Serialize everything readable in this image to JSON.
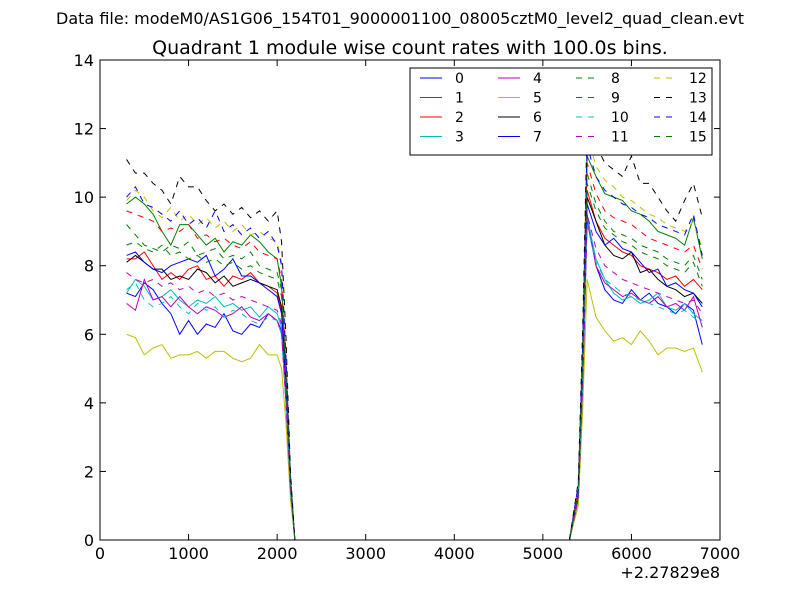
{
  "figure": {
    "suptitle": "Data file: modeM0/AS1G06_154T01_9000001100_08005cztM0_level2_quad_clean.evt"
  },
  "chart_data": {
    "type": "line",
    "title": "Quadrant 1 module wise count rates with 100.0s bins.",
    "xlabel": "",
    "ylabel": "",
    "x_offset_label": "+2.27829e8",
    "xlim": [
      0,
      7000
    ],
    "ylim": [
      0,
      14
    ],
    "xticks": [
      0,
      1000,
      2000,
      3000,
      4000,
      5000,
      6000,
      7000
    ],
    "yticks": [
      0,
      2,
      4,
      6,
      8,
      10,
      12,
      14
    ],
    "grid": false,
    "legend_position": "top-right",
    "legend_columns": 4,
    "gap_start": 2200,
    "gap_end": 5300,
    "seg1": [
      300,
      400,
      500,
      600,
      700,
      800,
      900,
      1000,
      1100,
      1200,
      1300,
      1400,
      1500,
      1600,
      1700,
      1800,
      1900,
      2000,
      2050,
      2100,
      2150,
      2200
    ],
    "seg2": [
      5300,
      5400,
      5450,
      5500,
      5600,
      5700,
      5800,
      5900,
      6000,
      6100,
      6200,
      6300,
      6400,
      6500,
      6600,
      6700,
      6800
    ],
    "series": [
      {
        "name": "0",
        "color": "#0000ff",
        "dash": "solid",
        "seg1": [
          7.2,
          7.1,
          7.5,
          7.3,
          6.9,
          6.6,
          6.0,
          6.4,
          6.0,
          6.3,
          6.2,
          6.6,
          6.1,
          6.0,
          6.3,
          6.2,
          6.6,
          6.4,
          6.1,
          4.0,
          1.5,
          0.0
        ],
        "seg2": [
          0.0,
          1.2,
          4.5,
          9.5,
          8.0,
          7.3,
          7.0,
          6.9,
          7.3,
          7.0,
          7.2,
          6.9,
          6.8,
          6.6,
          6.9,
          6.7,
          5.7
        ]
      },
      {
        "name": "1",
        "color": "#008000",
        "dash": "solid",
        "seg1": [
          9.8,
          10.0,
          9.8,
          9.5,
          9.0,
          8.6,
          9.2,
          9.2,
          8.9,
          8.6,
          8.8,
          8.4,
          8.7,
          8.6,
          8.9,
          8.7,
          8.4,
          8.2,
          7.4,
          5.0,
          1.8,
          0.0
        ],
        "seg2": [
          0.0,
          1.4,
          5.2,
          11.2,
          10.6,
          10.1,
          10.0,
          9.9,
          9.6,
          9.5,
          9.3,
          9.0,
          8.9,
          8.8,
          8.6,
          9.4,
          8.2
        ]
      },
      {
        "name": "2",
        "color": "#ff0000",
        "dash": "solid",
        "seg1": [
          8.2,
          8.2,
          8.4,
          8.0,
          7.6,
          7.8,
          7.6,
          7.9,
          8.0,
          7.6,
          7.7,
          7.4,
          7.7,
          7.6,
          7.8,
          7.5,
          7.4,
          7.2,
          6.7,
          4.5,
          1.6,
          0.0
        ],
        "seg2": [
          0.0,
          1.3,
          4.9,
          10.2,
          9.3,
          8.8,
          8.6,
          8.4,
          8.3,
          8.0,
          7.9,
          7.8,
          7.6,
          7.7,
          7.4,
          7.6,
          7.3
        ]
      },
      {
        "name": "3",
        "color": "#00bfbf",
        "dash": "solid",
        "seg1": [
          7.2,
          7.6,
          7.4,
          7.0,
          7.1,
          7.3,
          7.0,
          6.8,
          7.0,
          6.9,
          7.1,
          6.8,
          6.9,
          6.7,
          6.8,
          6.5,
          6.8,
          6.6,
          6.2,
          4.2,
          1.5,
          0.0
        ],
        "seg2": [
          0.0,
          1.2,
          4.6,
          9.4,
          8.2,
          7.6,
          7.2,
          7.0,
          7.1,
          6.9,
          7.0,
          7.2,
          6.8,
          6.7,
          6.9,
          6.6,
          6.4
        ]
      },
      {
        "name": "4",
        "color": "#bf00bf",
        "dash": "solid",
        "seg1": [
          6.9,
          6.7,
          7.6,
          7.0,
          7.1,
          6.8,
          7.1,
          6.8,
          6.6,
          6.8,
          6.7,
          6.5,
          6.6,
          6.8,
          6.5,
          6.4,
          6.6,
          6.4,
          6.0,
          4.0,
          1.4,
          0.0
        ],
        "seg2": [
          0.0,
          1.2,
          4.5,
          9.3,
          8.0,
          7.5,
          7.3,
          7.1,
          7.2,
          7.0,
          6.9,
          7.1,
          6.8,
          6.9,
          6.7,
          7.1,
          6.2
        ]
      },
      {
        "name": "5",
        "color": "#bfbf00",
        "dash": "solid",
        "seg1": [
          6.0,
          5.9,
          5.4,
          5.6,
          5.7,
          5.3,
          5.4,
          5.4,
          5.5,
          5.3,
          5.5,
          5.5,
          5.3,
          5.2,
          5.3,
          5.7,
          5.4,
          5.4,
          5.0,
          3.4,
          1.2,
          0.0
        ],
        "seg2": [
          0.0,
          1.0,
          3.8,
          7.6,
          6.5,
          6.1,
          5.8,
          5.9,
          5.7,
          6.1,
          5.8,
          5.4,
          5.6,
          5.6,
          5.5,
          5.6,
          4.9
        ]
      },
      {
        "name": "6",
        "color": "#000000",
        "dash": "solid",
        "seg1": [
          8.1,
          8.3,
          8.1,
          7.9,
          7.9,
          7.6,
          7.7,
          7.6,
          7.9,
          7.8,
          7.5,
          7.7,
          7.4,
          7.5,
          7.6,
          7.5,
          7.4,
          7.3,
          6.8,
          4.6,
          1.6,
          0.0
        ],
        "seg2": [
          0.0,
          1.3,
          5.0,
          10.0,
          9.3,
          8.6,
          8.3,
          8.2,
          8.4,
          7.8,
          7.9,
          7.6,
          7.4,
          7.3,
          7.1,
          7.2,
          6.9
        ]
      },
      {
        "name": "7",
        "color": "#0000ff",
        "dash": "solid",
        "seg1": [
          8.3,
          8.4,
          8.1,
          7.9,
          7.8,
          8.0,
          8.1,
          8.2,
          8.1,
          8.3,
          7.7,
          7.9,
          8.2,
          7.7,
          7.7,
          7.5,
          7.3,
          7.1,
          6.6,
          4.4,
          1.6,
          0.0
        ],
        "seg2": [
          0.0,
          1.3,
          4.9,
          9.8,
          9.0,
          8.6,
          8.8,
          8.5,
          8.4,
          8.1,
          7.8,
          7.9,
          7.4,
          7.5,
          7.3,
          7.2,
          6.8
        ]
      },
      {
        "name": "8",
        "color": "#008000",
        "dash": "dashed",
        "seg1": [
          9.2,
          8.9,
          8.6,
          8.5,
          8.4,
          8.6,
          8.5,
          8.7,
          8.3,
          8.4,
          8.5,
          8.2,
          8.3,
          8.2,
          8.4,
          8.0,
          7.9,
          7.8,
          7.3,
          4.9,
          1.7,
          0.0
        ],
        "seg2": [
          0.0,
          1.4,
          5.2,
          10.7,
          9.8,
          9.3,
          9.0,
          8.9,
          8.8,
          8.6,
          8.5,
          8.4,
          8.2,
          8.1,
          8.0,
          8.3,
          7.6
        ]
      },
      {
        "name": "9",
        "color": "#ff0000",
        "dash": "dashed",
        "seg1": [
          9.6,
          9.5,
          9.4,
          9.3,
          9.0,
          9.1,
          9.0,
          9.2,
          8.8,
          8.9,
          8.7,
          8.8,
          8.6,
          8.5,
          8.7,
          8.4,
          8.3,
          8.2,
          7.6,
          5.1,
          1.8,
          0.0
        ],
        "seg2": [
          0.0,
          1.5,
          5.4,
          11.0,
          10.1,
          9.6,
          9.4,
          9.3,
          9.2,
          9.0,
          8.8,
          8.7,
          8.6,
          8.5,
          8.4,
          8.6,
          7.9
        ]
      },
      {
        "name": "10",
        "color": "#00bfbf",
        "dash": "dashed",
        "seg1": [
          7.3,
          7.5,
          7.0,
          6.8,
          6.9,
          7.1,
          6.8,
          6.6,
          6.9,
          6.7,
          6.8,
          6.5,
          6.7,
          6.6,
          6.4,
          6.3,
          6.5,
          6.4,
          6.0,
          4.0,
          1.4,
          0.0
        ],
        "seg2": [
          0.0,
          1.2,
          4.5,
          9.2,
          8.1,
          7.6,
          7.4,
          7.2,
          7.1,
          7.0,
          6.9,
          6.8,
          6.7,
          6.6,
          6.7,
          6.5,
          6.3
        ]
      },
      {
        "name": "11",
        "color": "#bf00bf",
        "dash": "dashed",
        "seg1": [
          7.8,
          7.6,
          7.5,
          7.6,
          7.4,
          7.5,
          7.3,
          7.4,
          7.2,
          7.3,
          7.1,
          7.2,
          7.0,
          7.1,
          7.0,
          6.9,
          6.8,
          6.7,
          6.3,
          4.2,
          1.5,
          0.0
        ],
        "seg2": [
          0.0,
          1.2,
          4.6,
          9.5,
          8.5,
          8.0,
          7.8,
          7.6,
          7.5,
          7.4,
          7.3,
          7.2,
          7.1,
          7.0,
          6.9,
          7.0,
          6.6
        ]
      },
      {
        "name": "12",
        "color": "#bfbf00",
        "dash": "dashed",
        "seg1": [
          9.9,
          10.2,
          10.0,
          9.6,
          9.4,
          9.7,
          9.3,
          9.5,
          9.2,
          9.4,
          9.1,
          9.3,
          9.0,
          9.2,
          8.9,
          9.0,
          8.8,
          8.7,
          8.1,
          5.4,
          1.9,
          0.0
        ],
        "seg2": [
          0.0,
          1.6,
          5.8,
          11.8,
          10.9,
          10.5,
          10.3,
          10.0,
          9.9,
          9.7,
          9.5,
          9.4,
          9.2,
          9.1,
          9.0,
          9.3,
          8.5
        ]
      },
      {
        "name": "13",
        "color": "#000000",
        "dash": "dashed",
        "seg1": [
          11.1,
          10.7,
          10.7,
          10.4,
          10.2,
          9.8,
          10.6,
          10.3,
          10.3,
          9.9,
          9.6,
          9.8,
          9.5,
          9.7,
          9.4,
          9.6,
          9.3,
          9.6,
          8.7,
          5.9,
          2.0,
          0.0
        ],
        "seg2": [
          0.0,
          1.7,
          6.2,
          12.2,
          11.5,
          11.0,
          10.8,
          10.6,
          11.2,
          10.4,
          10.4,
          10.0,
          9.6,
          9.3,
          9.9,
          10.4,
          9.4
        ]
      },
      {
        "name": "14",
        "color": "#0000ff",
        "dash": "dashed",
        "seg1": [
          10.0,
          10.3,
          9.8,
          9.7,
          9.5,
          9.3,
          9.6,
          9.2,
          9.4,
          9.1,
          9.6,
          9.0,
          9.2,
          8.9,
          9.1,
          8.8,
          9.0,
          8.6,
          8.0,
          5.3,
          1.9,
          0.0
        ],
        "seg2": [
          0.0,
          1.6,
          5.7,
          11.5,
          10.6,
          10.2,
          10.0,
          9.8,
          9.7,
          9.5,
          9.4,
          9.2,
          9.1,
          9.0,
          8.9,
          9.5,
          8.3
        ]
      },
      {
        "name": "15",
        "color": "#008000",
        "dash": "dashed",
        "seg1": [
          8.6,
          8.7,
          8.5,
          8.4,
          8.6,
          8.3,
          8.4,
          8.2,
          8.3,
          8.1,
          8.2,
          8.0,
          8.1,
          7.9,
          8.0,
          7.8,
          7.7,
          7.6,
          7.1,
          4.8,
          1.7,
          0.0
        ],
        "seg2": [
          0.0,
          1.4,
          5.1,
          10.4,
          9.6,
          9.1,
          8.9,
          8.7,
          8.6,
          8.4,
          8.3,
          8.2,
          8.0,
          7.9,
          7.8,
          8.1,
          7.4
        ]
      }
    ]
  }
}
